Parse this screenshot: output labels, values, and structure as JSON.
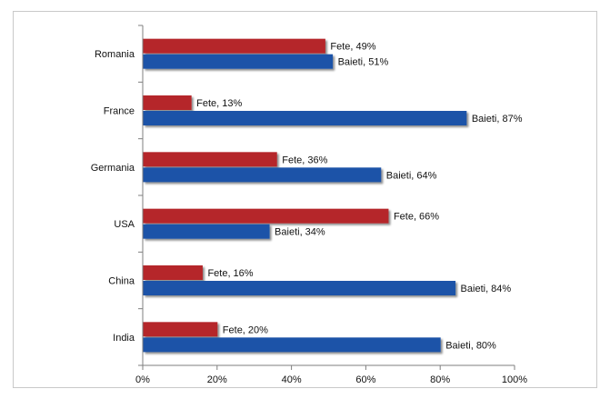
{
  "chart_data": {
    "type": "bar",
    "orientation": "horizontal",
    "categories": [
      "Romania",
      "France",
      "Germania",
      "USA",
      "China",
      "India"
    ],
    "series": [
      {
        "name": "Fete",
        "color": "#b5262a",
        "values": [
          49,
          13,
          36,
          66,
          16,
          20
        ]
      },
      {
        "name": "Baieti",
        "color": "#1f52a8",
        "values": [
          51,
          87,
          64,
          34,
          84,
          80
        ]
      }
    ],
    "data_labels": [
      [
        "Fete, 49%",
        "Fete, 13%",
        "Fete, 36%",
        "Fete, 66%",
        "Fete, 16%",
        "Fete, 20%"
      ],
      [
        "Baieti, 51%",
        "Baieti, 87%",
        "Baieti, 64%",
        "Baieti, 34%",
        "Baieti, 84%",
        "Baieti, 80%"
      ]
    ],
    "x_ticks": [
      "0%",
      "20%",
      "40%",
      "60%",
      "80%",
      "100%"
    ],
    "xlim": [
      0,
      100
    ],
    "title": "",
    "xlabel": "",
    "ylabel": "",
    "grid": false,
    "legend": "none"
  }
}
